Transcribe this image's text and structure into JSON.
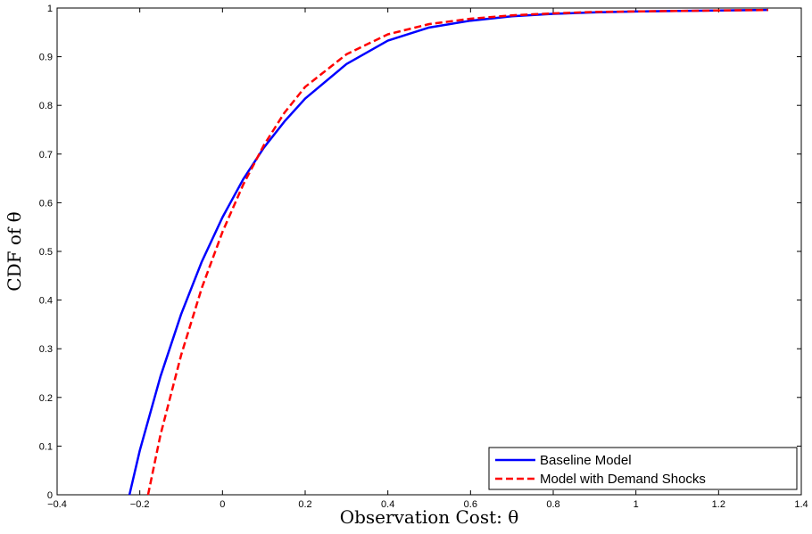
{
  "chart_data": {
    "type": "line",
    "xlabel": "Observation Cost: θ",
    "ylabel": "CDF of θ",
    "xlim": [
      -0.4,
      1.4
    ],
    "ylim": [
      0,
      1
    ],
    "xticks": [
      -0.4,
      -0.2,
      0,
      0.2,
      0.4,
      0.6,
      0.8,
      1,
      1.2,
      1.4
    ],
    "yticks": [
      0,
      0.1,
      0.2,
      0.3,
      0.4,
      0.5,
      0.6,
      0.7,
      0.8,
      0.9,
      1
    ],
    "xtick_labels": [
      "−0.4",
      "−0.2",
      "0",
      "0.2",
      "0.4",
      "0.6",
      "0.8",
      "1",
      "1.2",
      "1.4"
    ],
    "ytick_labels": [
      "0",
      "0.1",
      "0.2",
      "0.3",
      "0.4",
      "0.5",
      "0.6",
      "0.7",
      "0.8",
      "0.9",
      "1"
    ],
    "grid": false,
    "legend_position": "bottom-right",
    "series": [
      {
        "name": "Baseline Model",
        "color": "#0000ff",
        "style": "solid",
        "x": [
          -0.225,
          -0.2,
          -0.15,
          -0.1,
          -0.05,
          0,
          0.05,
          0.1,
          0.15,
          0.2,
          0.3,
          0.4,
          0.5,
          0.6,
          0.7,
          0.8,
          0.9,
          1.0,
          1.1,
          1.2,
          1.32
        ],
        "y": [
          0.0,
          0.091,
          0.243,
          0.371,
          0.479,
          0.57,
          0.648,
          0.713,
          0.767,
          0.814,
          0.885,
          0.933,
          0.96,
          0.974,
          0.983,
          0.988,
          0.991,
          0.993,
          0.994,
          0.995,
          0.996
        ]
      },
      {
        "name": "Model with Demand Shocks",
        "color": "#ff0000",
        "style": "dashed",
        "x": [
          -0.18,
          -0.15,
          -0.1,
          -0.05,
          0,
          0.05,
          0.1,
          0.15,
          0.2,
          0.3,
          0.4,
          0.5,
          0.6,
          0.7,
          0.8,
          0.9,
          1.0,
          1.1,
          1.2,
          1.32
        ],
        "y": [
          0.0,
          0.123,
          0.287,
          0.425,
          0.54,
          0.637,
          0.718,
          0.785,
          0.838,
          0.905,
          0.946,
          0.967,
          0.978,
          0.985,
          0.989,
          0.992,
          0.993,
          0.994,
          0.995,
          0.996
        ]
      }
    ]
  }
}
